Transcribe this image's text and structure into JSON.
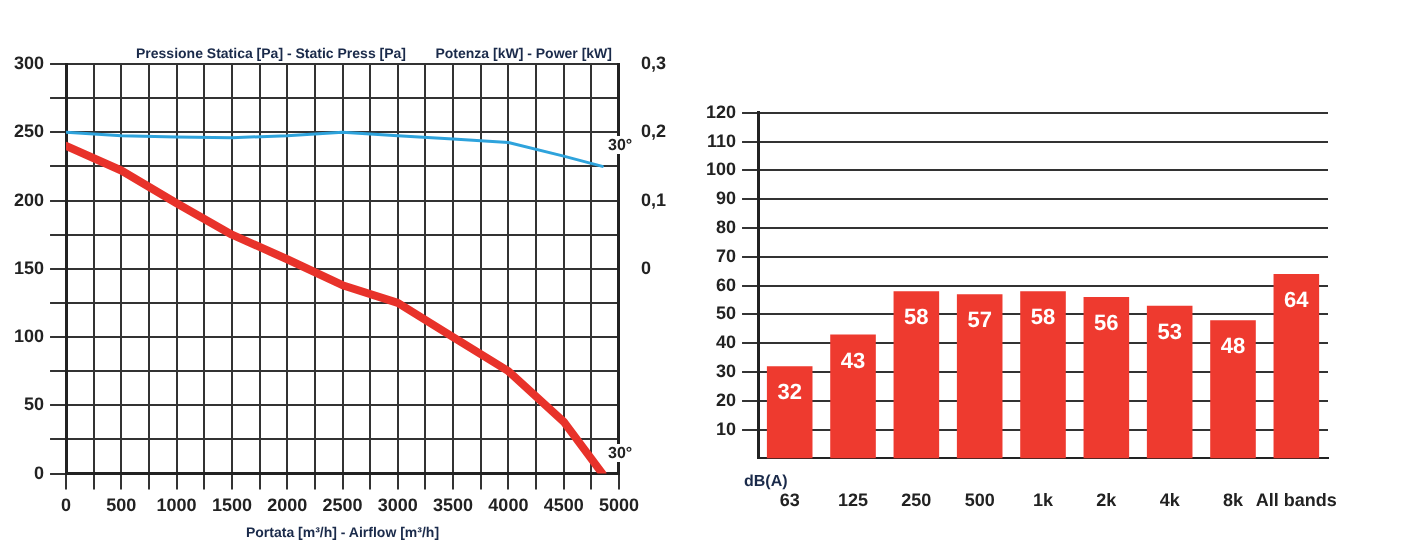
{
  "chart_data": [
    {
      "type": "line",
      "xlabel": "Portata [m³/h] - Airflow [m³/h]",
      "ylabel": "Pressione Statica [Pa] - Static Press [Pa]",
      "y2label": "Potenza [kW] - Power [kW]",
      "xlim": [
        0,
        5000
      ],
      "xticks": [
        0,
        {
          "value": 250,
          "label": null
        },
        500,
        {
          "value": 750,
          "label": null
        },
        1000,
        {
          "value": 1250,
          "label": null
        },
        1500,
        {
          "value": 1750,
          "label": null
        },
        2000,
        {
          "value": 2250,
          "label": null
        },
        2500,
        {
          "value": 2750,
          "label": null
        },
        3000,
        {
          "value": 3250,
          "label": null
        },
        3500,
        {
          "value": 3750,
          "label": null
        },
        4000,
        {
          "value": 4250,
          "label": null
        },
        4500,
        {
          "value": 4750,
          "label": null
        },
        5000
      ],
      "ylim": [
        0,
        300
      ],
      "yticks": [
        0,
        {
          "value": 25,
          "label": null
        },
        50,
        {
          "value": 75,
          "label": null
        },
        100,
        {
          "value": 125,
          "label": null
        },
        150,
        {
          "value": 175,
          "label": null
        },
        200,
        {
          "value": 225,
          "label": null
        },
        250,
        {
          "value": 275,
          "label": null
        },
        300
      ],
      "y2lim": [
        -0.3,
        0.3
      ],
      "y2ticks": [
        {
          "value": 0,
          "label": "0"
        },
        {
          "value": 0.1,
          "label": "0,1"
        },
        {
          "value": 0.2,
          "label": "0,2"
        },
        {
          "value": 0.3,
          "label": "0,3"
        }
      ],
      "grid": true,
      "marker": "none",
      "series": [
        {
          "color": "#e8322a",
          "x": [
            0,
            500,
            1000,
            1500,
            2000,
            2500,
            3000,
            3500,
            4000,
            4500,
            4850
          ],
          "values": [
            240,
            222,
            198,
            175,
            157,
            138,
            125,
            100,
            75,
            38,
            0
          ]
        },
        {
          "color": "#2ea3dc",
          "axis": "y2",
          "x": [
            0,
            500,
            1000,
            1500,
            2000,
            2500,
            3000,
            3500,
            4000,
            4500,
            4850
          ],
          "values": [
            0.2,
            0.195,
            0.193,
            0.192,
            0.195,
            0.2,
            0.195,
            0.19,
            0.185,
            0.165,
            0.15
          ]
        }
      ],
      "annotations": [
        "30°",
        "30°"
      ]
    },
    {
      "type": "bar",
      "xlabel": "dB(A)",
      "categories": [
        "63",
        "125",
        "250",
        "500",
        "1k",
        "2k",
        "4k",
        "8k",
        "All bands"
      ],
      "values": [
        32,
        43,
        58,
        57,
        58,
        56,
        53,
        48,
        64
      ],
      "color": "#ee3a2f",
      "ylim": [
        0,
        120
      ],
      "yticks": [
        10,
        20,
        30,
        40,
        50,
        60,
        70,
        80,
        90,
        100,
        110,
        120
      ],
      "grid": "y",
      "data_labels": true
    }
  ]
}
